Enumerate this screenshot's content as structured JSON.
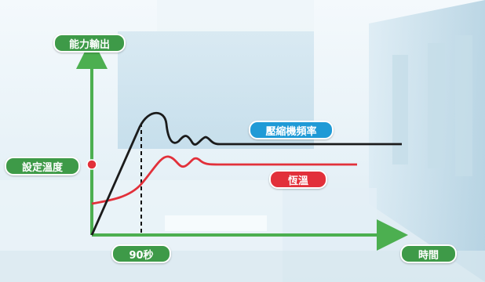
{
  "labels": {
    "y_axis": "能力輸出",
    "x_axis": "時間",
    "setpoint": "設定溫度",
    "time_mark": "90秒",
    "legend_compressor": "壓縮機頻率",
    "legend_temp": "恆溫"
  },
  "colors": {
    "axis": "#4caf50",
    "compressor_line": "#1b1b1b",
    "temperature_line": "#e2303a",
    "setpoint_dot": "#e2303a",
    "legend_compressor_bg": "#1f9ad6",
    "legend_temp_bg": "#e2303a",
    "label_bg": "#3e9a48"
  }
}
